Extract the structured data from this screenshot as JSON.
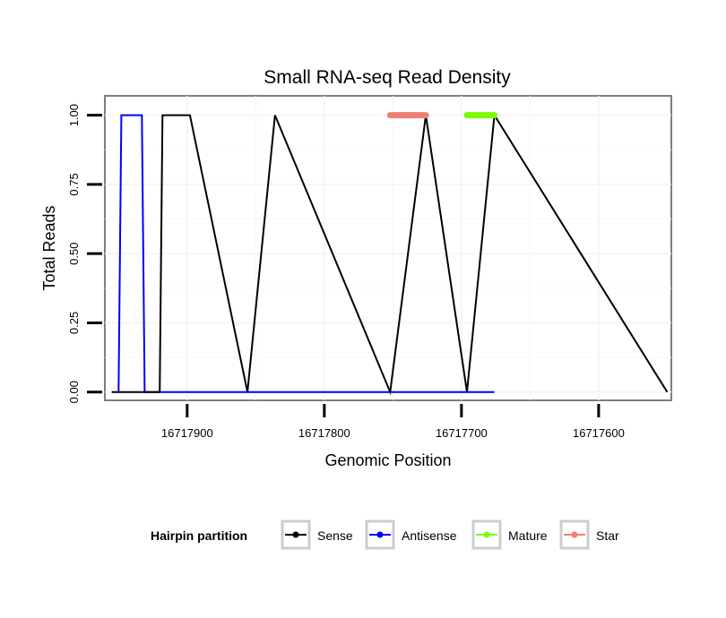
{
  "chart_data": {
    "type": "line",
    "title": "Small RNA-seq Read Density",
    "xlabel": "Genomic Position",
    "ylabel": "Total Reads",
    "x_reversed": true,
    "xlim": [
      16717960,
      16717547
    ],
    "ylim": [
      -0.03,
      1.07
    ],
    "x_ticks": [
      16717900,
      16717800,
      16717700,
      16717600
    ],
    "x_tick_labels": [
      "16717900",
      "16717800",
      "16717700",
      "16717600"
    ],
    "y_ticks": [
      0,
      0.25,
      0.5,
      0.75,
      1
    ],
    "y_tick_labels": [
      "0.00",
      "0.25",
      "0.50",
      "0.75",
      "1.00"
    ],
    "grid": true,
    "legend": {
      "title": "Hairpin partition",
      "position": "bottom",
      "entries": [
        {
          "name": "Sense",
          "color": "#000000"
        },
        {
          "name": "Antisense",
          "color": "#0000FF"
        },
        {
          "name": "Mature",
          "color": "#7CFC00"
        },
        {
          "name": "Star",
          "color": "#F08070"
        }
      ]
    },
    "series": [
      {
        "name": "Sense",
        "color": "#000000",
        "x": [
          16717955,
          16717920,
          16717920,
          16717918,
          16717918,
          16717898,
          16717898,
          16717856,
          16717856,
          16717836,
          16717836,
          16717752,
          16717752,
          16717726,
          16717726,
          16717696,
          16717696,
          16717676,
          16717676,
          16717550
        ],
        "y": [
          0,
          0,
          0,
          1,
          1,
          1,
          1,
          0,
          0,
          1,
          1,
          0,
          0,
          1,
          1,
          0,
          0,
          1,
          1,
          0
        ]
      },
      {
        "name": "Antisense",
        "color": "#0000FF",
        "x": [
          16717950,
          16717948,
          16717933,
          16717931,
          16717920,
          16717898,
          16717856,
          16717836,
          16717752,
          16717726,
          16717696,
          16717676
        ],
        "y": [
          0,
          1,
          1,
          0,
          0,
          0,
          0,
          0,
          0,
          0,
          0,
          0
        ]
      },
      {
        "name": "Mature",
        "color": "#7CFC00",
        "x": [
          16717696,
          16717676
        ],
        "y": [
          1,
          1
        ]
      },
      {
        "name": "Star",
        "color": "#F08070",
        "x": [
          16717752,
          16717726
        ],
        "y": [
          1,
          1
        ]
      }
    ]
  }
}
